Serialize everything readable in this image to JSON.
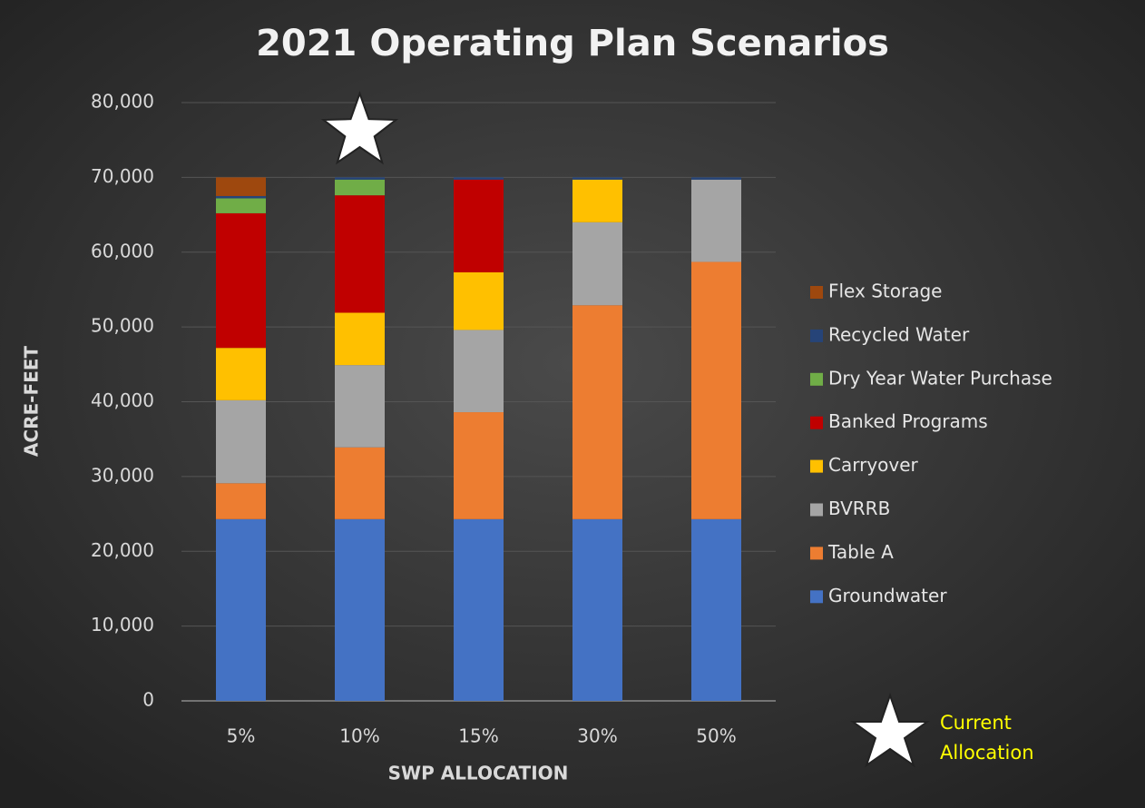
{
  "chart_data": {
    "type": "stacked_bar",
    "title": "2021 Operating Plan Scenarios",
    "x_label": "SWP ALLOCATION",
    "y_label": "ACRE-FEET",
    "categories": [
      "5%",
      "10%",
      "15%",
      "30%",
      "50%"
    ],
    "series": [
      {
        "name": "Groundwater",
        "color": "#4472c4",
        "values": [
          24300,
          24300,
          24300,
          24300,
          24300
        ]
      },
      {
        "name": "Table A",
        "color": "#ed7d31",
        "values": [
          4800,
          9600,
          14300,
          28600,
          34400
        ]
      },
      {
        "name": "BVRRB",
        "color": "#a5a5a5",
        "values": [
          11100,
          11000,
          11000,
          11100,
          11000
        ]
      },
      {
        "name": "Carryover",
        "color": "#ffc000",
        "values": [
          7000,
          7000,
          7700,
          5700,
          0
        ]
      },
      {
        "name": "Banked Programs",
        "color": "#c00000",
        "values": [
          18000,
          15700,
          12400,
          0,
          0
        ]
      },
      {
        "name": "Dry Year Water Purchase",
        "color": "#70ad47",
        "values": [
          2000,
          2100,
          0,
          0,
          0
        ]
      },
      {
        "name": "Recycled Water",
        "color": "#264478",
        "values": [
          300,
          300,
          300,
          300,
          300
        ]
      },
      {
        "name": "Flex Storage",
        "color": "#9e480e",
        "values": [
          2500,
          0,
          0,
          0,
          0
        ]
      }
    ],
    "ylim": [
      0,
      80000
    ],
    "yticks": [
      0,
      {
        "value": 10000,
        "label": "10,000"
      },
      {
        "value": 20000,
        "label": "20,000"
      },
      {
        "value": 30000,
        "label": "30,000"
      },
      {
        "value": 40000,
        "label": "40,000"
      },
      {
        "value": 50000,
        "label": "50,000"
      },
      {
        "value": 60000,
        "label": "60,000"
      },
      {
        "value": 70000,
        "label": "70,000"
      },
      {
        "value": 80000,
        "label": "80,000"
      }
    ],
    "grid": true,
    "legend": "right",
    "highlight_category": 1,
    "annotation": "Current Allocation"
  }
}
